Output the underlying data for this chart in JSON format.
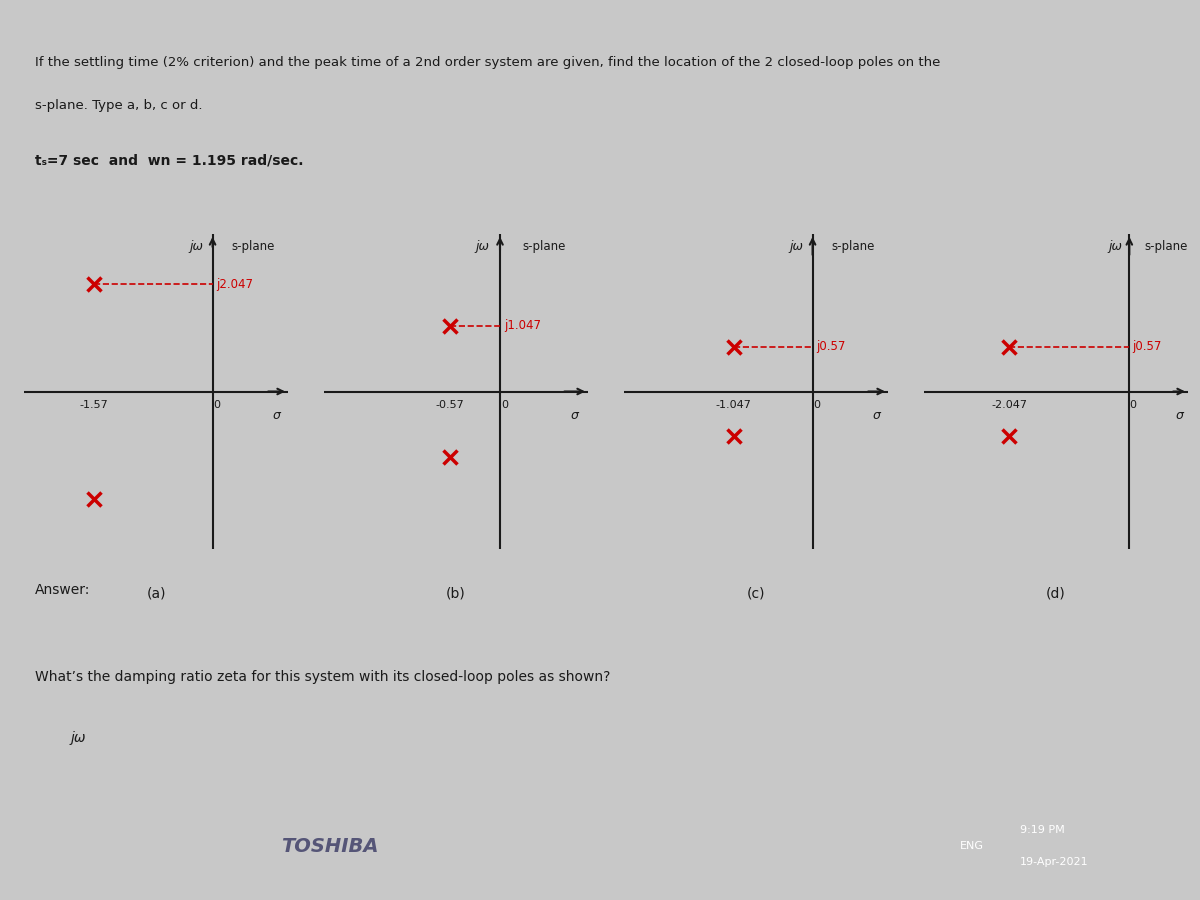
{
  "bg_color": "#c8c8c8",
  "content_bg": "#e8e8e8",
  "title_text1": "If the settling time (2% criterion) and the peak time of a 2nd order system are given, find the location of the 2 closed-loop poles on the",
  "title_text2": "s-plane. Type a, b, c or d.",
  "param_text": "tₛ=7 sec  and  wn = 1.195 rad/sec.",
  "answer_text": "Answer:",
  "bottom_text": "What’s the damping ratio zeta for this system with its closed-loop poles as shown?",
  "bottom_jw": "jω",
  "plots": [
    {
      "label": "(a)",
      "sigma_label": "-1.57",
      "poles_upper": [
        [
          -1.57,
          2.047
        ]
      ],
      "poles_lower": [
        [
          -1.57,
          -2.047
        ]
      ],
      "jw_label": "j2.047",
      "x_range": [
        -2.5,
        1.0
      ],
      "y_range": [
        -3.0,
        3.0
      ],
      "sigma_val": -1.57,
      "jw_val": 2.047
    },
    {
      "label": "(b)",
      "sigma_label": "-0.57",
      "poles_upper": [
        [
          -0.57,
          1.047
        ]
      ],
      "poles_lower": [
        [
          -0.57,
          -1.047
        ]
      ],
      "jw_label": "j1.047",
      "x_range": [
        -2.0,
        1.0
      ],
      "y_range": [
        -2.5,
        2.5
      ],
      "sigma_val": -0.57,
      "jw_val": 1.047
    },
    {
      "label": "(c)",
      "sigma_label": "-1.047",
      "poles_upper": [
        [
          -1.047,
          0.57
        ]
      ],
      "poles_lower": [
        [
          -1.047,
          -0.57
        ]
      ],
      "jw_label": "j0.57",
      "x_range": [
        -2.5,
        1.0
      ],
      "y_range": [
        -2.0,
        2.0
      ],
      "sigma_val": -1.047,
      "jw_val": 0.57
    },
    {
      "label": "(d)",
      "sigma_label": "-2.047",
      "poles_upper": [
        [
          -2.047,
          0.57
        ]
      ],
      "poles_lower": [
        [
          -2.047,
          -0.57
        ]
      ],
      "jw_label": "j0.57",
      "x_range": [
        -3.5,
        1.0
      ],
      "y_range": [
        -2.0,
        2.0
      ],
      "sigma_val": -2.047,
      "jw_val": 0.57
    }
  ],
  "pole_color": "#cc0000",
  "axis_color": "#1a1a1a",
  "text_color": "#1a1a1a",
  "label_color": "#cc0000",
  "dashed_color": "#cc0000"
}
